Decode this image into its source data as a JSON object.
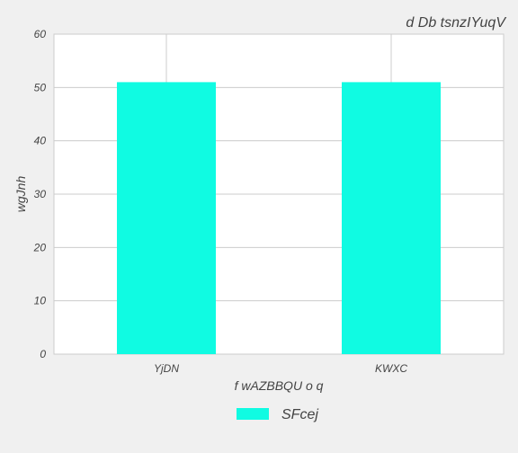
{
  "chart_data": {
    "type": "bar",
    "title": "d Db tsnzIYuqV",
    "xlabel": "f wAZBBQU o q",
    "ylabel": "wgJnh",
    "categories": [
      "YjDN",
      "KWXC"
    ],
    "series": [
      {
        "name": "SFcej",
        "values": [
          51,
          51
        ],
        "color": "#10fbe2"
      }
    ],
    "ylim": [
      0,
      60
    ],
    "yticks": [
      0,
      10,
      20,
      30,
      40,
      50,
      60
    ],
    "grid": true,
    "legend": "bottom-center",
    "background": "#f0f0f0",
    "plot_background": "#ffffff"
  }
}
